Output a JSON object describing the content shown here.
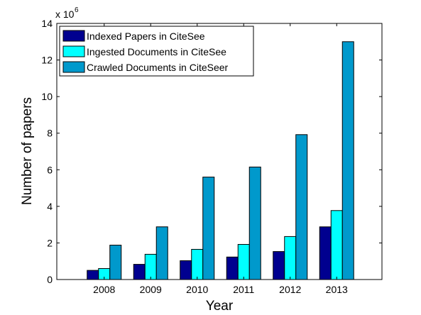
{
  "chart_data": {
    "type": "bar",
    "title": "",
    "xlabel": "Year",
    "ylabel": "Number of papers",
    "exponent_label": "x 10",
    "exponent_power": "6",
    "categories": [
      "2008",
      "2009",
      "2010",
      "2011",
      "2012",
      "2013"
    ],
    "y_ticks": [
      "0",
      "2",
      "4",
      "6",
      "8",
      "10",
      "12",
      "14"
    ],
    "ylim": [
      0,
      14
    ],
    "grid": false,
    "legend_position": "top-left",
    "series": [
      {
        "name": "Indexed Papers in CiteSee",
        "color": "#00008f",
        "values": [
          0.5,
          0.83,
          1.03,
          1.23,
          1.53,
          2.88
        ]
      },
      {
        "name": "Ingested Documents in CiteSee",
        "color": "#00ffff",
        "values": [
          0.6,
          1.38,
          1.65,
          1.92,
          2.35,
          3.77
        ]
      },
      {
        "name": "Crawled Documents in CiteSeer",
        "color": "#0099cc",
        "values": [
          1.88,
          2.88,
          5.6,
          6.15,
          7.92,
          13.0
        ]
      }
    ]
  }
}
